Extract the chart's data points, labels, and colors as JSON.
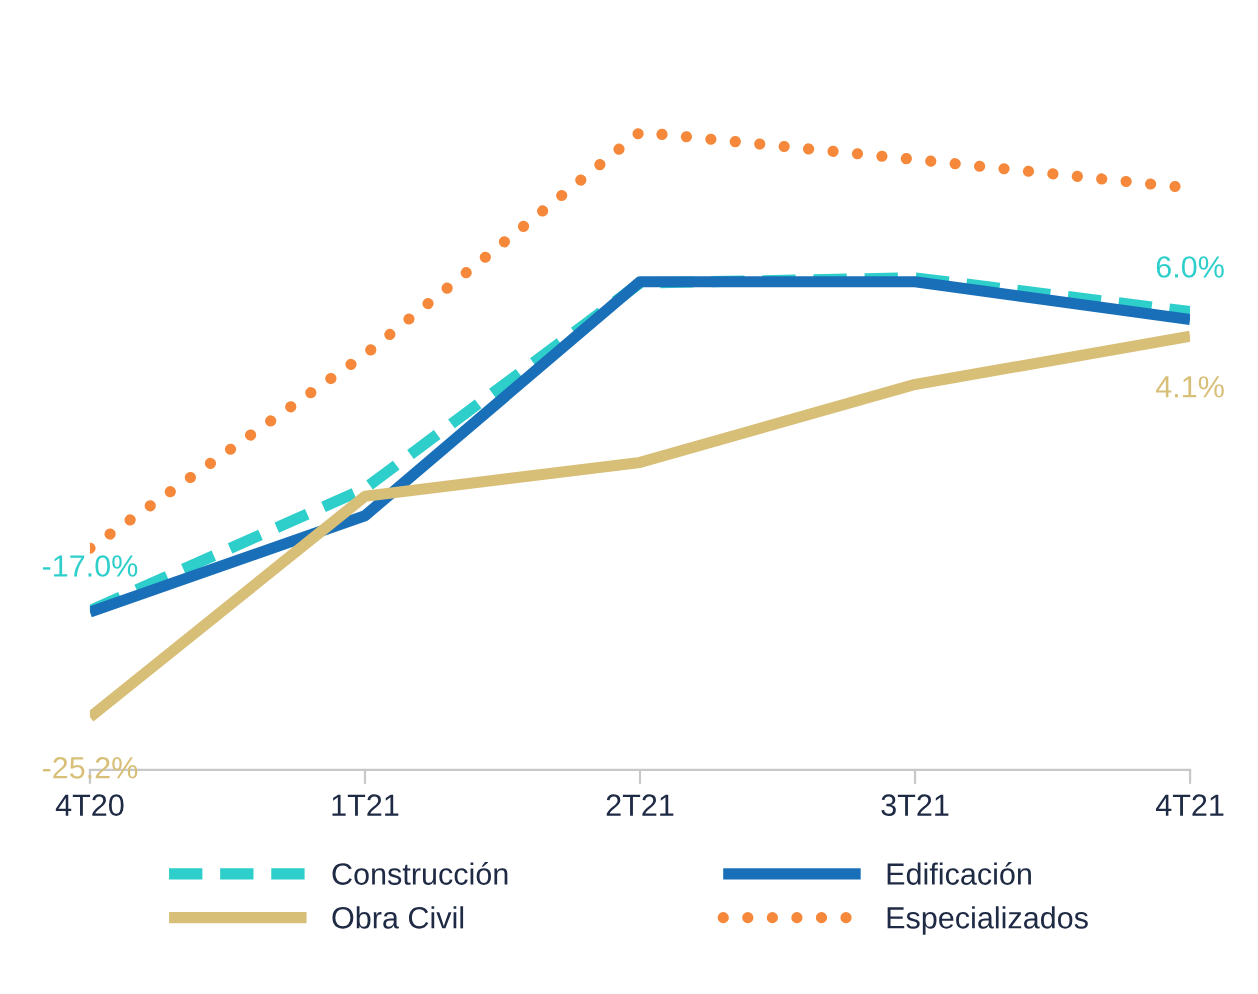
{
  "chart_data": {
    "type": "line",
    "categories": [
      "4T20",
      "1T21",
      "2T21",
      "3T21",
      "4T21"
    ],
    "series": [
      {
        "name": "Construcción",
        "color": "#2ecfcb",
        "line_style": "dashed",
        "values": [
          -17.0,
          -7.6,
          8.2,
          8.6,
          6.0
        ],
        "value_labels": [
          "-17.0%",
          null,
          null,
          null,
          "6.0%"
        ]
      },
      {
        "name": "Edificación",
        "color": "#1a70b8",
        "line_style": "solid",
        "values": [
          -17.1,
          -9.7,
          8.3,
          8.3,
          5.4
        ]
      },
      {
        "name": "Obra Civil",
        "color": "#d8bf78",
        "line_style": "solid",
        "values": [
          -25.2,
          -8.2,
          -5.6,
          0.4,
          4.1
        ],
        "value_labels": [
          "-25.2%",
          null,
          null,
          null,
          "4.1%"
        ]
      },
      {
        "name": "Especializados",
        "color": "#f5883a",
        "line_style": "dotted",
        "values": [
          -12.2,
          2.7,
          19.8,
          17.7,
          15.5
        ]
      }
    ],
    "tick_labels": "x",
    "grid": false,
    "legend": "bottom",
    "marker": "none"
  }
}
